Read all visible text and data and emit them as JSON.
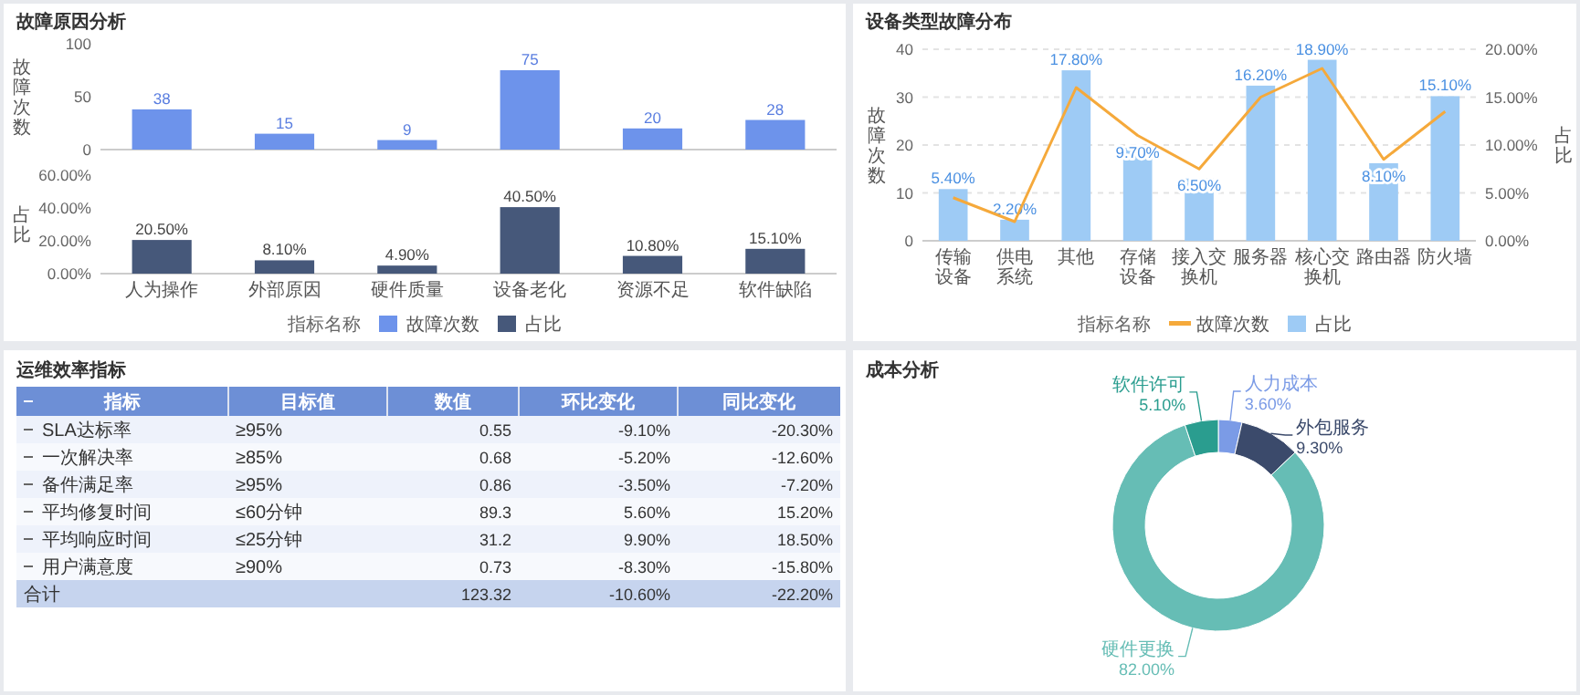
{
  "chart_data": [
    {
      "type": "bar",
      "title": "故障原因分析",
      "categories": [
        "人为操作",
        "外部原因",
        "硬件质量",
        "设备老化",
        "资源不足",
        "软件缺陷"
      ],
      "series": [
        {
          "name": "故障次数",
          "color": "#6d93eb",
          "values": [
            38,
            15,
            9,
            75,
            20,
            28
          ]
        }
      ],
      "ylabel": "故障次数",
      "ylim": [
        0,
        100
      ],
      "yticks": [
        0,
        50,
        100
      ],
      "data_labels": true,
      "tick_labels": "y",
      "legend": "bottom",
      "legend_title": "指标名称"
    },
    {
      "type": "bar",
      "categories": [
        "人为操作",
        "外部原因",
        "硬件质量",
        "设备老化",
        "资源不足",
        "软件缺陷"
      ],
      "series": [
        {
          "name": "占比",
          "color": "#46587a",
          "values": [
            20.5,
            8.1,
            4.9,
            40.5,
            10.8,
            15.1
          ],
          "value_labels": [
            "20.50%",
            "8.10%",
            "4.90%",
            "40.50%",
            "10.80%",
            "15.10%"
          ]
        }
      ],
      "ylabel": "占比",
      "ylim": [
        0,
        60
      ],
      "yticks": [
        {
          "value": 0,
          "label": "0.00%"
        },
        {
          "value": 20,
          "label": "20.00%"
        },
        {
          "value": 40,
          "label": "40.00%"
        },
        {
          "value": 60,
          "label": "60.00%"
        }
      ],
      "legend": "bottom"
    },
    {
      "type": "bar",
      "title": "设备类型故障分布",
      "categories": [
        "传输设备",
        "供电系统",
        "其他",
        "存储设备",
        "接入交换机",
        "服务器",
        "核心交换机",
        "路由器",
        "防火墙"
      ],
      "series": [
        {
          "name": "故障次数",
          "type": "line",
          "color": "#f5a93b",
          "values": [
            9,
            4,
            32,
            22,
            15,
            30,
            36,
            17,
            27
          ]
        },
        {
          "name": "占比",
          "color": "#9ecbf5",
          "axis": "y2",
          "values": [
            5.4,
            2.2,
            17.8,
            9.7,
            6.5,
            16.2,
            18.9,
            8.1,
            15.1
          ],
          "value_labels": [
            "5.40%",
            "2.20%",
            "17.80%",
            "9.70%",
            "6.50%",
            "16.20%",
            "18.90%",
            "8.10%",
            "15.10%"
          ]
        }
      ],
      "ylabel": "故障次数",
      "ylim": [
        0,
        40
      ],
      "yticks": [
        0,
        10,
        20,
        30,
        40
      ],
      "y2label": "占比",
      "y2lim": [
        0,
        20
      ],
      "y2ticks": [
        {
          "value": 0,
          "label": "0.00%"
        },
        {
          "value": 5,
          "label": "5.00%"
        },
        {
          "value": 10,
          "label": "10.00%"
        },
        {
          "value": 15,
          "label": "15.00%"
        },
        {
          "value": 20,
          "label": "20.00%"
        }
      ],
      "grid": "y",
      "legend": "bottom",
      "legend_title": "指标名称"
    },
    {
      "type": "other",
      "title": "运维效率指标",
      "categories": [
        "指标",
        "目标值",
        "数值",
        "环比变化",
        "同比变化"
      ],
      "y_categories": [
        "SLA达标率",
        "一次解决率",
        "备件满足率",
        "平均修复时间",
        "平均响应时间",
        "用户满意度",
        "合计"
      ],
      "cell_labels": [
        [
          "≥95%",
          "0.55",
          "-9.10%",
          "-20.30%"
        ],
        [
          "≥85%",
          "0.68",
          "-5.20%",
          "-12.60%"
        ],
        [
          "≥95%",
          "0.86",
          "-3.50%",
          "-7.20%"
        ],
        [
          "≤60分钟",
          "89.3",
          "5.60%",
          "15.20%"
        ],
        [
          "≤25分钟",
          "31.2",
          "9.90%",
          "18.50%"
        ],
        [
          "≥90%",
          "0.73",
          "-8.30%",
          "-15.80%"
        ],
        [
          null,
          "123.32",
          "-10.60%",
          "-22.20%"
        ]
      ]
    },
    {
      "type": "donut",
      "title": "成本分析",
      "categories": [
        "人力成本",
        "外包服务",
        "硬件更换",
        "软件许可"
      ],
      "values": [
        3.6,
        9.3,
        82,
        5.1
      ],
      "colors": [
        "#7b9be6",
        "#3b4a6b",
        "#66bdb5",
        "#2a9d8f"
      ],
      "value_labels": [
        "3.60%",
        "9.30%",
        "82.00%",
        "5.10%"
      ]
    }
  ]
}
